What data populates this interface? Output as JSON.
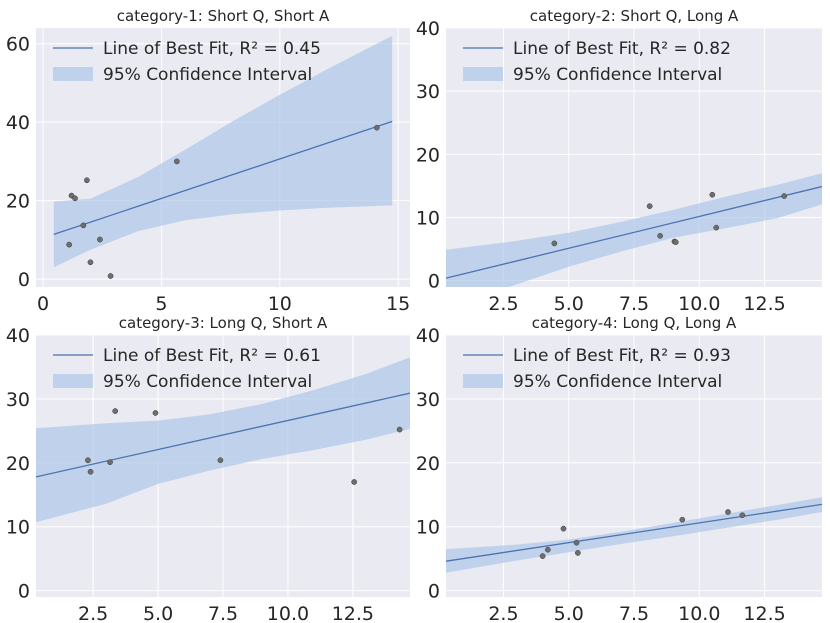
{
  "chart_data": [
    {
      "type": "scatter",
      "title": "category-1: Short Q, Short A",
      "xlim": [
        -0.3,
        15.5
      ],
      "ylim": [
        -2,
        64
      ],
      "xticks": [
        0,
        5,
        10,
        15
      ],
      "yticks": [
        0,
        20,
        40,
        60
      ],
      "xtick_labels": [
        "0",
        "5",
        "10",
        "15"
      ],
      "ytick_labels": [
        "0",
        "20",
        "40",
        "60"
      ],
      "points": {
        "x": [
          1.1,
          1.2,
          1.35,
          1.7,
          1.85,
          2.0,
          2.4,
          2.85,
          5.65,
          14.1
        ],
        "y": [
          8.8,
          21.3,
          20.6,
          13.7,
          25.2,
          4.3,
          10.1,
          0.8,
          30.0,
          38.6
        ]
      },
      "fit": {
        "x": [
          0.45,
          14.75
        ],
        "y": [
          11.4,
          40.2
        ]
      },
      "ci": {
        "x": [
          0.45,
          2.0,
          4.0,
          6.0,
          8.0,
          10.0,
          12.0,
          14.75
        ],
        "upper": [
          19.8,
          20.5,
          26.0,
          33.0,
          40.2,
          47.0,
          53.5,
          62.0
        ],
        "lower": [
          3.0,
          7.5,
          12.2,
          15.0,
          16.5,
          17.5,
          18.2,
          18.8
        ]
      },
      "legend": {
        "line_label": "Line of Best Fit, R² = 0.45",
        "band_label": "95% Confidence Interval",
        "position": "top-left"
      }
    },
    {
      "type": "scatter",
      "title": "category-2: Short Q, Long A",
      "xlim": [
        0.3,
        14.7
      ],
      "ylim": [
        -1,
        40
      ],
      "xticks": [
        2.5,
        5.0,
        7.5,
        10.0,
        12.5
      ],
      "yticks": [
        0,
        10,
        20,
        30,
        40
      ],
      "xtick_labels": [
        "2.5",
        "5.0",
        "7.5",
        "10.0",
        "12.5"
      ],
      "ytick_labels": [
        "0",
        "10",
        "20",
        "30",
        "40"
      ],
      "points": {
        "x": [
          4.45,
          8.1,
          8.5,
          9.05,
          9.1,
          10.5,
          10.65,
          13.25
        ],
        "y": [
          5.9,
          11.8,
          7.1,
          6.2,
          6.1,
          13.6,
          8.4,
          13.4
        ]
      },
      "fit": {
        "x": [
          0.3,
          14.7
        ],
        "y": [
          0.4,
          14.9
        ]
      },
      "ci": {
        "x": [
          0.3,
          3.0,
          5.0,
          7.0,
          9.0,
          11.0,
          13.0,
          14.7
        ],
        "upper": [
          4.9,
          6.3,
          7.6,
          9.3,
          11.2,
          13.3,
          15.2,
          17.0
        ],
        "lower": [
          -4.3,
          -0.6,
          2.2,
          4.6,
          6.8,
          8.3,
          9.9,
          12.1
        ]
      },
      "legend": {
        "line_label": "Line of Best Fit, R² = 0.82",
        "band_label": "95% Confidence Interval",
        "position": "top-left"
      }
    },
    {
      "type": "scatter",
      "title": "category-3: Long Q, Short A",
      "xlim": [
        0.3,
        14.7
      ],
      "ylim": [
        -1,
        40
      ],
      "xticks": [
        2.5,
        5.0,
        7.5,
        10.0,
        12.5
      ],
      "yticks": [
        0,
        10,
        20,
        30,
        40
      ],
      "xtick_labels": [
        "2.5",
        "5.0",
        "7.5",
        "10.0",
        "12.5"
      ],
      "ytick_labels": [
        "0",
        "10",
        "20",
        "30",
        "40"
      ],
      "points": {
        "x": [
          2.3,
          2.4,
          3.15,
          3.35,
          4.9,
          7.4,
          12.55,
          14.3
        ],
        "y": [
          20.4,
          18.6,
          20.1,
          28.1,
          27.8,
          20.4,
          17.0,
          25.2
        ]
      },
      "fit": {
        "x": [
          0.3,
          14.7
        ],
        "y": [
          17.8,
          30.9
        ]
      },
      "ci": {
        "x": [
          0.3,
          3.0,
          5.0,
          7.0,
          9.0,
          11.0,
          13.0,
          14.7
        ],
        "upper": [
          25.4,
          26.2,
          26.6,
          27.6,
          29.2,
          31.4,
          33.9,
          36.5
        ],
        "lower": [
          10.7,
          13.6,
          16.7,
          18.8,
          20.6,
          22.0,
          23.6,
          25.3
        ]
      },
      "legend": {
        "line_label": "Line of Best Fit, R² = 0.61",
        "band_label": "95% Confidence Interval",
        "position": "top-left"
      }
    },
    {
      "type": "scatter",
      "title": "category-4: Long Q, Long A",
      "xlim": [
        0.3,
        14.7
      ],
      "ylim": [
        -1,
        40
      ],
      "xticks": [
        2.5,
        5.0,
        7.5,
        10.0,
        12.5
      ],
      "yticks": [
        0,
        10,
        20,
        30,
        40
      ],
      "xtick_labels": [
        "2.5",
        "5.0",
        "7.5",
        "10.0",
        "12.5"
      ],
      "ytick_labels": [
        "0",
        "10",
        "20",
        "30",
        "40"
      ],
      "points": {
        "x": [
          4.0,
          4.2,
          4.8,
          5.3,
          5.35,
          9.35,
          11.1,
          11.65
        ],
        "y": [
          5.4,
          6.4,
          9.7,
          7.5,
          5.9,
          11.1,
          12.3,
          11.8
        ]
      },
      "fit": {
        "x": [
          0.3,
          14.7
        ],
        "y": [
          4.6,
          13.5
        ]
      },
      "ci": {
        "x": [
          0.3,
          3.0,
          5.0,
          7.0,
          9.0,
          11.0,
          13.0,
          14.7
        ],
        "upper": [
          6.5,
          7.2,
          8.0,
          9.2,
          10.6,
          12.0,
          13.4,
          14.6
        ],
        "lower": [
          2.8,
          4.7,
          6.0,
          7.3,
          8.5,
          9.8,
          11.1,
          12.3
        ]
      },
      "legend": {
        "line_label": "Line of Best Fit, R² = 0.93",
        "band_label": "95% Confidence Interval",
        "position": "top-left"
      }
    }
  ]
}
